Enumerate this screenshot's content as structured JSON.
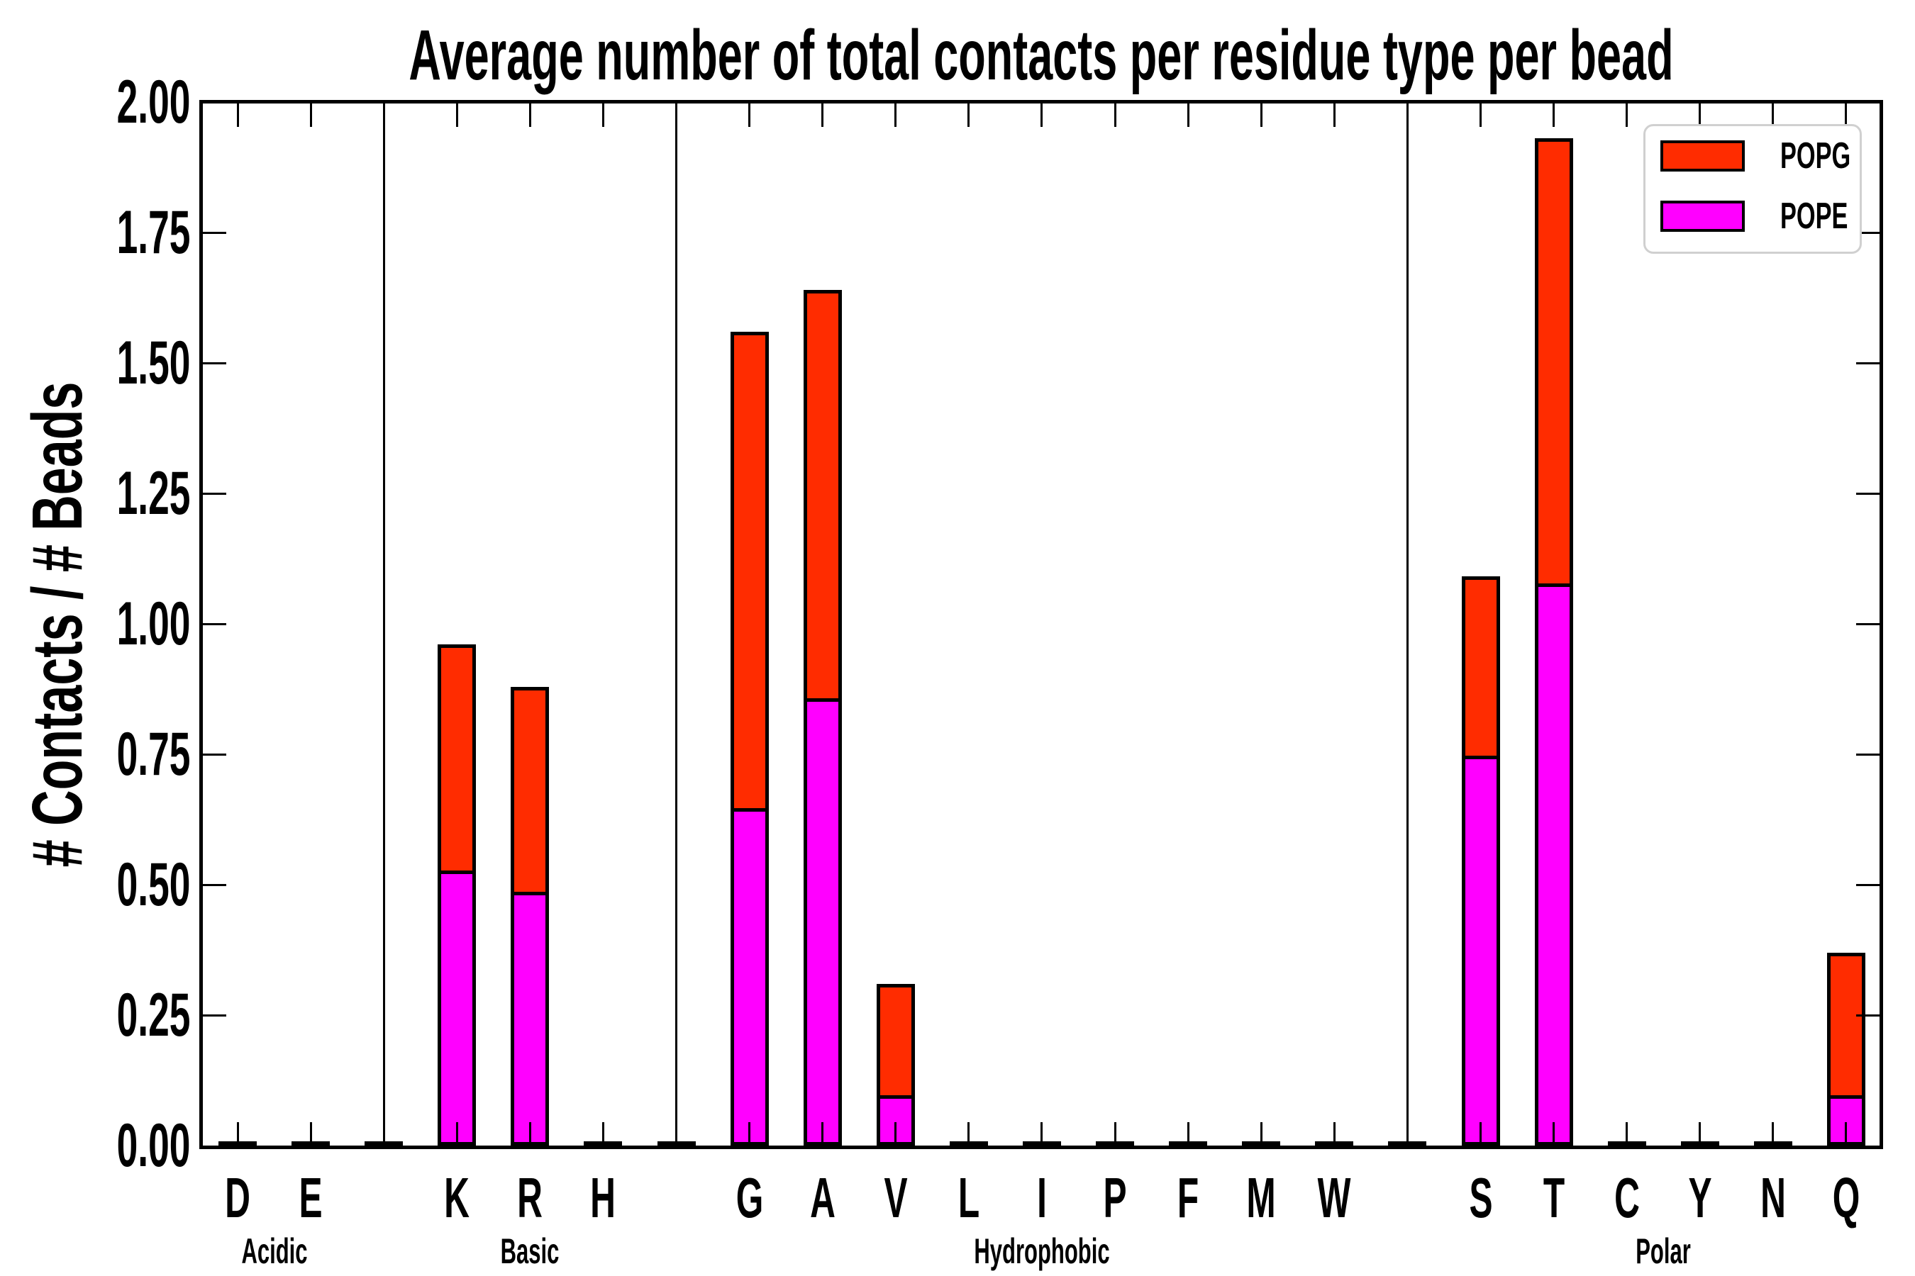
{
  "title": "Average number of total contacts per residue type per bead",
  "ylabel": "# Contacts / # Beads",
  "legend": {
    "items": [
      {
        "label": "POPG",
        "color": "#ff2c00"
      },
      {
        "label": "POPE",
        "color": "#ff00ff"
      }
    ]
  },
  "chart_data": {
    "type": "bar",
    "stacked": true,
    "title": "Average number of total contacts per residue type per bead",
    "xlabel": "",
    "ylabel": "# Contacts / # Beads",
    "ylim": [
      0.0,
      2.0
    ],
    "ytick_step": 0.25,
    "ytick_labels": [
      "0.00",
      "0.25",
      "0.50",
      "0.75",
      "1.00",
      "1.25",
      "1.50",
      "1.75",
      "2.00"
    ],
    "grid": false,
    "legend_position": "upper right",
    "groups": [
      {
        "label": "Acidic",
        "residues": [
          "D",
          "E"
        ]
      },
      {
        "label": "Basic",
        "residues": [
          "K",
          "R",
          "H"
        ]
      },
      {
        "label": "Hydrophobic",
        "residues": [
          "G",
          "A",
          "V",
          "L",
          "I",
          "P",
          "F",
          "M",
          "W"
        ]
      },
      {
        "label": "Polar",
        "residues": [
          "S",
          "T",
          "C",
          "Y",
          "N",
          "Q"
        ]
      }
    ],
    "categories": [
      "D",
      "E",
      "K",
      "R",
      "H",
      "G",
      "A",
      "V",
      "L",
      "I",
      "P",
      "F",
      "M",
      "W",
      "S",
      "T",
      "C",
      "Y",
      "N",
      "Q"
    ],
    "series": [
      {
        "name": "POPE",
        "color": "#ff00ff",
        "values": [
          0,
          0,
          0.52,
          0.48,
          0,
          0.64,
          0.85,
          0.09,
          0,
          0,
          0,
          0,
          0,
          0,
          0.74,
          1.07,
          0,
          0,
          0,
          0.09
        ]
      },
      {
        "name": "POPG",
        "color": "#ff2c00",
        "values": [
          0,
          0,
          0.44,
          0.4,
          0,
          0.92,
          0.79,
          0.22,
          0,
          0,
          0,
          0,
          0,
          0,
          0.35,
          0.86,
          0,
          0,
          0,
          0.28
        ]
      }
    ],
    "totals": [
      0,
      0,
      0.96,
      0.88,
      0,
      1.56,
      1.64,
      0.31,
      0,
      0,
      0,
      0,
      0,
      0,
      1.09,
      1.93,
      0,
      0,
      0,
      0.37
    ]
  }
}
